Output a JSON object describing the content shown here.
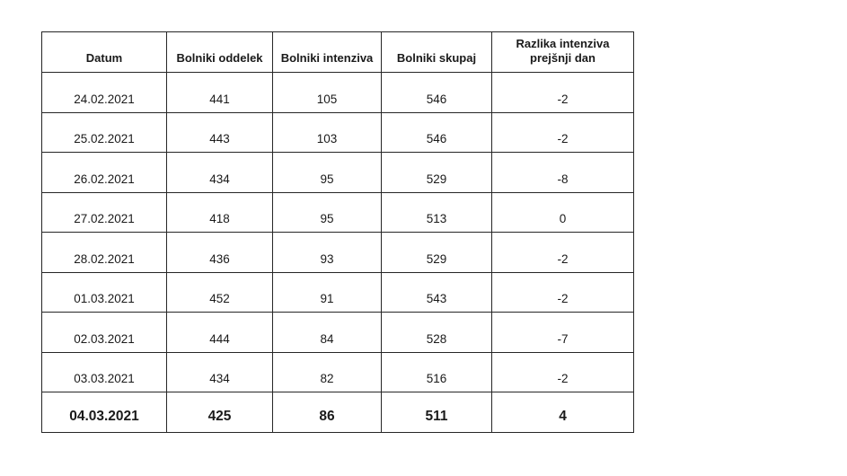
{
  "chart_data": {
    "type": "table",
    "columns": [
      "Datum",
      "Bolniki oddelek",
      "Bolniki intenziva",
      "Bolniki skupaj",
      "Razlika intenziva prejšnji dan"
    ],
    "rows": [
      [
        "24.02.2021",
        441,
        105,
        546,
        -2
      ],
      [
        "25.02.2021",
        443,
        103,
        546,
        -2
      ],
      [
        "26.02.2021",
        434,
        95,
        529,
        -8
      ],
      [
        "27.02.2021",
        418,
        95,
        513,
        0
      ],
      [
        "28.02.2021",
        436,
        93,
        529,
        -2
      ],
      [
        "01.03.2021",
        452,
        91,
        543,
        -2
      ],
      [
        "02.03.2021",
        444,
        84,
        528,
        -7
      ],
      [
        "03.03.2021",
        434,
        82,
        516,
        -2
      ],
      [
        "04.03.2021",
        425,
        86,
        511,
        4
      ]
    ],
    "notes": "last row emphasized bold; column value colors: blue, orange, green, black"
  },
  "table": {
    "headers": [
      "Datum",
      "Bolniki oddelek",
      "Bolniki intenziva",
      "Bolniki skupaj",
      "Razlika intenziva prejšnji dan"
    ],
    "rows": [
      {
        "datum": "24.02.2021",
        "oddelek": "441",
        "intenziva": "105",
        "skupaj": "546",
        "razlika": "-2",
        "bold": false
      },
      {
        "datum": "25.02.2021",
        "oddelek": "443",
        "intenziva": "103",
        "skupaj": "546",
        "razlika": "-2",
        "bold": false
      },
      {
        "datum": "26.02.2021",
        "oddelek": "434",
        "intenziva": "95",
        "skupaj": "529",
        "razlika": "-8",
        "bold": false
      },
      {
        "datum": "27.02.2021",
        "oddelek": "418",
        "intenziva": "95",
        "skupaj": "513",
        "razlika": "0",
        "bold": false
      },
      {
        "datum": "28.02.2021",
        "oddelek": "436",
        "intenziva": "93",
        "skupaj": "529",
        "razlika": "-2",
        "bold": false
      },
      {
        "datum": "01.03.2021",
        "oddelek": "452",
        "intenziva": "91",
        "skupaj": "543",
        "razlika": "-2",
        "bold": false
      },
      {
        "datum": "02.03.2021",
        "oddelek": "444",
        "intenziva": "84",
        "skupaj": "528",
        "razlika": "-7",
        "bold": false
      },
      {
        "datum": "03.03.2021",
        "oddelek": "434",
        "intenziva": "82",
        "skupaj": "516",
        "razlika": "-2",
        "bold": false
      },
      {
        "datum": "04.03.2021",
        "oddelek": "425",
        "intenziva": "86",
        "skupaj": "511",
        "razlika": "4",
        "bold": true
      }
    ],
    "colors": {
      "oddelek": "#4472C4",
      "intenziva": "#ED7D31",
      "skupaj": "#70AD47",
      "razlika": "#1a1a1a"
    }
  }
}
